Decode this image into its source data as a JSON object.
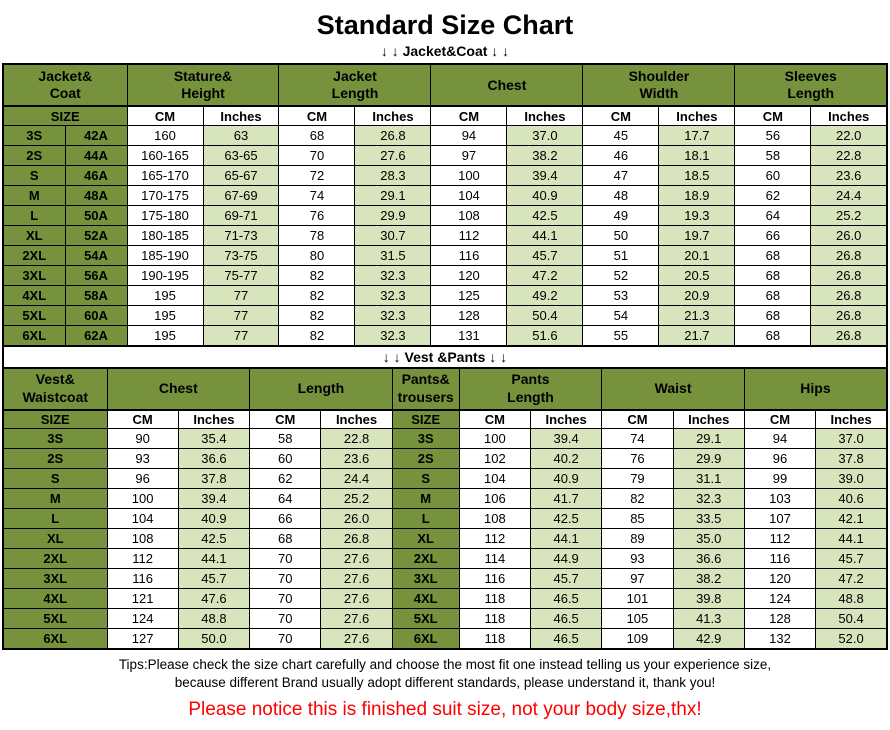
{
  "page": {
    "title": "Standard Size Chart",
    "jacket_banner": "↓ ↓  Jacket&Coat ↓ ↓",
    "vest_banner": "↓ ↓  Vest &Pants ↓ ↓",
    "tips_line1": "Tips:Please check the size chart carefully and choose the most fit one instead telling us your experience size,",
    "tips_line2": "because different Brand usually adopt different standards, please understand it, thank you!",
    "notice": "Please notice this is finished suit size, not your body size,thx!"
  },
  "colors": {
    "header_green": "#77923C",
    "light_green": "#D7E4BC",
    "border": "#000000",
    "notice_red": "#FF0000",
    "text": "#000000",
    "background": "#FFFFFF"
  },
  "chart_data": [
    {
      "type": "table",
      "title": "Jacket&Coat",
      "column_groups": [
        {
          "label": "Jacket&\nCoat",
          "span": 2
        },
        {
          "label": "Stature&\nHeight",
          "span": 2
        },
        {
          "label": "Jacket\nLength",
          "span": 2
        },
        {
          "label": "Chest",
          "span": 2
        },
        {
          "label": "Shoulder\nWidth",
          "span": 2
        },
        {
          "label": "Sleeves\nLength",
          "span": 2
        }
      ],
      "subheader": [
        {
          "label": "SIZE",
          "span": 2,
          "kind": "size"
        },
        {
          "label": "CM",
          "kind": "cm"
        },
        {
          "label": "Inches",
          "kind": "in"
        },
        {
          "label": "CM",
          "kind": "cm"
        },
        {
          "label": "Inches",
          "kind": "in"
        },
        {
          "label": "CM",
          "kind": "cm"
        },
        {
          "label": "Inches",
          "kind": "in"
        },
        {
          "label": "CM",
          "kind": "cm"
        },
        {
          "label": "Inches",
          "kind": "in"
        },
        {
          "label": "CM",
          "kind": "cm"
        },
        {
          "label": "Inches",
          "kind": "in"
        }
      ],
      "col_kinds": [
        "size",
        "size",
        "cm",
        "in",
        "cm",
        "in",
        "cm",
        "in",
        "cm",
        "in",
        "cm",
        "in"
      ],
      "rows": [
        [
          "3S",
          "42A",
          "160",
          "63",
          "68",
          "26.8",
          "94",
          "37.0",
          "45",
          "17.7",
          "56",
          "22.0"
        ],
        [
          "2S",
          "44A",
          "160-165",
          "63-65",
          "70",
          "27.6",
          "97",
          "38.2",
          "46",
          "18.1",
          "58",
          "22.8"
        ],
        [
          "S",
          "46A",
          "165-170",
          "65-67",
          "72",
          "28.3",
          "100",
          "39.4",
          "47",
          "18.5",
          "60",
          "23.6"
        ],
        [
          "M",
          "48A",
          "170-175",
          "67-69",
          "74",
          "29.1",
          "104",
          "40.9",
          "48",
          "18.9",
          "62",
          "24.4"
        ],
        [
          "L",
          "50A",
          "175-180",
          "69-71",
          "76",
          "29.9",
          "108",
          "42.5",
          "49",
          "19.3",
          "64",
          "25.2"
        ],
        [
          "XL",
          "52A",
          "180-185",
          "71-73",
          "78",
          "30.7",
          "112",
          "44.1",
          "50",
          "19.7",
          "66",
          "26.0"
        ],
        [
          "2XL",
          "54A",
          "185-190",
          "73-75",
          "80",
          "31.5",
          "116",
          "45.7",
          "51",
          "20.1",
          "68",
          "26.8"
        ],
        [
          "3XL",
          "56A",
          "190-195",
          "75-77",
          "82",
          "32.3",
          "120",
          "47.2",
          "52",
          "20.5",
          "68",
          "26.8"
        ],
        [
          "4XL",
          "58A",
          "195",
          "77",
          "82",
          "32.3",
          "125",
          "49.2",
          "53",
          "20.9",
          "68",
          "26.8"
        ],
        [
          "5XL",
          "60A",
          "195",
          "77",
          "82",
          "32.3",
          "128",
          "50.4",
          "54",
          "21.3",
          "68",
          "26.8"
        ],
        [
          "6XL",
          "62A",
          "195",
          "77",
          "82",
          "32.3",
          "131",
          "51.6",
          "55",
          "21.7",
          "68",
          "26.8"
        ]
      ]
    },
    {
      "type": "table",
      "title": "Vest &Pants",
      "column_groups": [
        {
          "label": "Vest&\nWaistcoat",
          "span": 1
        },
        {
          "label": "Chest",
          "span": 2
        },
        {
          "label": "Length",
          "span": 2
        },
        {
          "label": "Pants&\ntrousers",
          "span": 1
        },
        {
          "label": "Pants\nLength",
          "span": 2
        },
        {
          "label": "Waist",
          "span": 2
        },
        {
          "label": "Hips",
          "span": 2
        }
      ],
      "subheader": [
        {
          "label": "SIZE",
          "kind": "size"
        },
        {
          "label": "CM",
          "kind": "cm"
        },
        {
          "label": "Inches",
          "kind": "in"
        },
        {
          "label": "CM",
          "kind": "cm"
        },
        {
          "label": "Inches",
          "kind": "in"
        },
        {
          "label": "SIZE",
          "kind": "size"
        },
        {
          "label": "CM",
          "kind": "cm"
        },
        {
          "label": "Inches",
          "kind": "in"
        },
        {
          "label": "CM",
          "kind": "cm"
        },
        {
          "label": "Inches",
          "kind": "in"
        },
        {
          "label": "CM",
          "kind": "cm"
        },
        {
          "label": "Inches",
          "kind": "in"
        }
      ],
      "col_kinds": [
        "size",
        "cm",
        "in",
        "cm",
        "in",
        "size",
        "cm",
        "in",
        "cm",
        "in",
        "cm",
        "in"
      ],
      "rows": [
        [
          "3S",
          "90",
          "35.4",
          "58",
          "22.8",
          "3S",
          "100",
          "39.4",
          "74",
          "29.1",
          "94",
          "37.0"
        ],
        [
          "2S",
          "93",
          "36.6",
          "60",
          "23.6",
          "2S",
          "102",
          "40.2",
          "76",
          "29.9",
          "96",
          "37.8"
        ],
        [
          "S",
          "96",
          "37.8",
          "62",
          "24.4",
          "S",
          "104",
          "40.9",
          "79",
          "31.1",
          "99",
          "39.0"
        ],
        [
          "M",
          "100",
          "39.4",
          "64",
          "25.2",
          "M",
          "106",
          "41.7",
          "82",
          "32.3",
          "103",
          "40.6"
        ],
        [
          "L",
          "104",
          "40.9",
          "66",
          "26.0",
          "L",
          "108",
          "42.5",
          "85",
          "33.5",
          "107",
          "42.1"
        ],
        [
          "XL",
          "108",
          "42.5",
          "68",
          "26.8",
          "XL",
          "112",
          "44.1",
          "89",
          "35.0",
          "112",
          "44.1"
        ],
        [
          "2XL",
          "112",
          "44.1",
          "70",
          "27.6",
          "2XL",
          "114",
          "44.9",
          "93",
          "36.6",
          "116",
          "45.7"
        ],
        [
          "3XL",
          "116",
          "45.7",
          "70",
          "27.6",
          "3XL",
          "116",
          "45.7",
          "97",
          "38.2",
          "120",
          "47.2"
        ],
        [
          "4XL",
          "121",
          "47.6",
          "70",
          "27.6",
          "4XL",
          "118",
          "46.5",
          "101",
          "39.8",
          "124",
          "48.8"
        ],
        [
          "5XL",
          "124",
          "48.8",
          "70",
          "27.6",
          "5XL",
          "118",
          "46.5",
          "105",
          "41.3",
          "128",
          "50.4"
        ],
        [
          "6XL",
          "127",
          "50.0",
          "70",
          "27.6",
          "6XL",
          "118",
          "46.5",
          "109",
          "42.9",
          "132",
          "52.0"
        ]
      ]
    }
  ]
}
